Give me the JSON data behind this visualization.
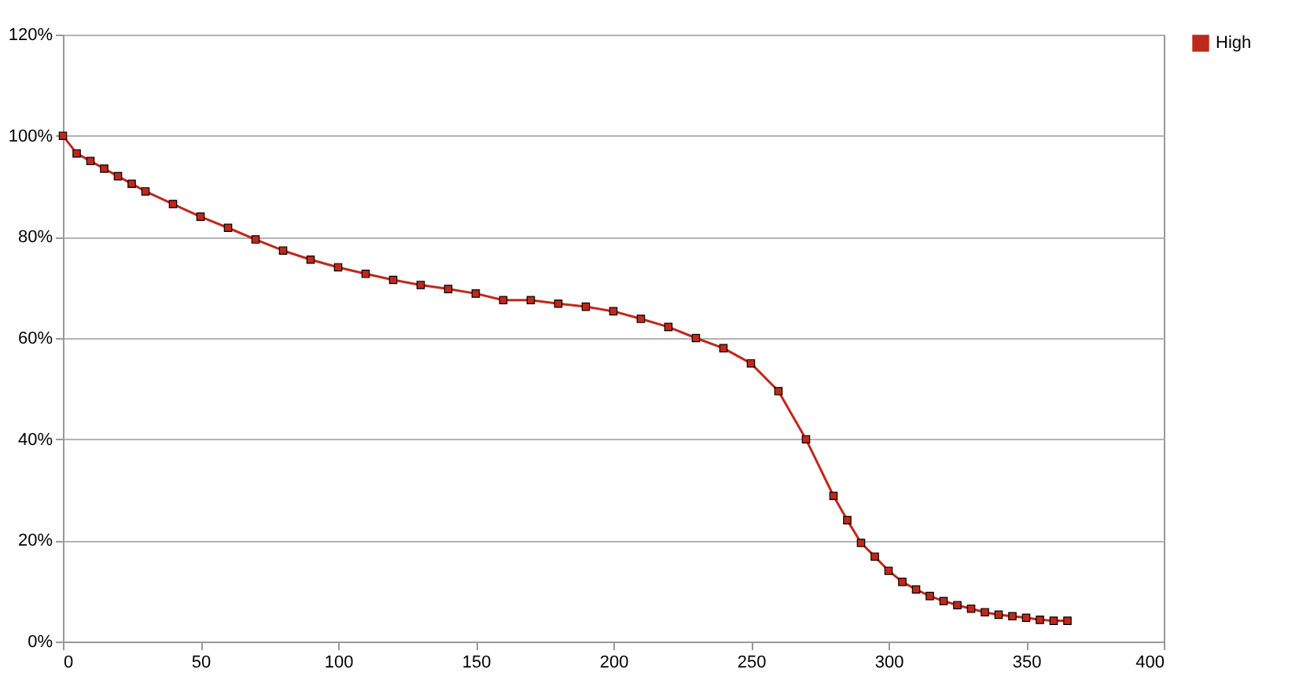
{
  "chart_data": {
    "type": "line",
    "x": [
      0,
      5,
      10,
      15,
      20,
      25,
      30,
      40,
      50,
      60,
      70,
      80,
      90,
      100,
      110,
      120,
      130,
      140,
      150,
      160,
      170,
      180,
      190,
      200,
      210,
      220,
      230,
      240,
      250,
      260,
      270,
      280,
      285,
      290,
      295,
      300,
      305,
      310,
      315,
      320,
      325,
      330,
      335,
      340,
      345,
      350,
      355,
      360,
      365
    ],
    "series": [
      {
        "name": "High",
        "color": "#c0281a",
        "values": [
          100,
          96.5,
          95,
          93.5,
          92,
          90.5,
          89,
          86.5,
          84,
          81.8,
          79.5,
          77.3,
          75.5,
          74,
          72.7,
          71.5,
          70.5,
          69.7,
          68.8,
          67.5,
          67.5,
          66.8,
          66.2,
          65.3,
          63.8,
          62.2,
          60,
          58,
          55,
          49.5,
          40,
          28.8,
          24,
          19.5,
          16.8,
          14,
          11.8,
          10.3,
          9,
          8,
          7.2,
          6.5,
          5.8,
          5.3,
          5,
          4.7,
          4.3,
          4.1,
          4.1
        ]
      }
    ],
    "xlim": [
      0,
      400
    ],
    "xticks": [
      0,
      50,
      100,
      150,
      200,
      250,
      300,
      350,
      400
    ],
    "ylim": [
      0,
      120
    ],
    "yticks": [
      {
        "value": 0,
        "label": "0%"
      },
      {
        "value": 20,
        "label": "20%"
      },
      {
        "value": 40,
        "label": "40%"
      },
      {
        "value": 60,
        "label": "60%"
      },
      {
        "value": 80,
        "label": "80%"
      },
      {
        "value": 100,
        "label": "100%"
      },
      {
        "value": 120,
        "label": "120%"
      }
    ],
    "grid": "y",
    "legend": "right",
    "marker": "square",
    "line_style": "solid"
  }
}
